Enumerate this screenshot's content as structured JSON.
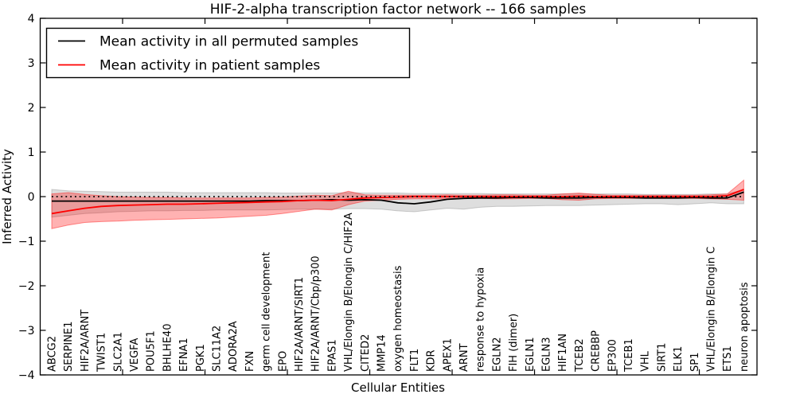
{
  "figure": {
    "background": "#ffffff"
  },
  "chart_data": {
    "type": "line",
    "title": "HIF-2-alpha transcription factor network -- 166 samples",
    "xlabel": "Cellular Entities",
    "ylabel": "Inferred Activity",
    "ylim": [
      -4,
      4
    ],
    "yticks": [
      4,
      3,
      2,
      1,
      0,
      -1,
      -2,
      -3,
      -4
    ],
    "xlim": [
      0,
      43.5
    ],
    "x_major_ticks": [
      5,
      10,
      15,
      20,
      25,
      30,
      35,
      40
    ],
    "x_offset": 0.7,
    "grid": false,
    "legend_position": "upper left",
    "reference_line": {
      "y": 0,
      "style": "dotted",
      "color": "#000000"
    },
    "categories": [
      "ABCG2",
      "SERPINE1",
      "HIF2A/ARNT",
      "TWIST1",
      "SLC2A1",
      "VEGFA",
      "POU5F1",
      "BHLHE40",
      "EFNA1",
      "PGK1",
      "SLC11A2",
      "ADORA2A",
      "FXN",
      "germ cell development",
      "EPO",
      "HIF2A/ARNT/SIRT1",
      "HIF2A/ARNT/Cbp/p300",
      "EPAS1",
      "VHL/Elongin B/Elongin C/HIF2A",
      "CITED2",
      "MMP14",
      "oxygen homeostasis",
      "FLT1",
      "KDR",
      "APEX1",
      "ARNT",
      "response to hypoxia",
      "EGLN2",
      "FIH (dimer)",
      "EGLN1",
      "EGLN3",
      "HIF1AN",
      "TCEB2",
      "CREBBP",
      "EP300",
      "TCEB1",
      "VHL",
      "SIRT1",
      "ELK1",
      "SP1",
      "VHL/Elongin B/Elongin C",
      "ETS1",
      "neuron apoptosis"
    ],
    "series": [
      {
        "name": "Mean activity in all permuted samples",
        "color": "#000000",
        "band_color": "#888888",
        "band_opacity": 0.28,
        "values": [
          -0.1,
          -0.1,
          -0.1,
          -0.1,
          -0.1,
          -0.1,
          -0.1,
          -0.1,
          -0.1,
          -0.1,
          -0.1,
          -0.1,
          -0.1,
          -0.09,
          -0.09,
          -0.09,
          -0.08,
          -0.07,
          -0.08,
          -0.07,
          -0.08,
          -0.14,
          -0.16,
          -0.12,
          -0.06,
          -0.04,
          -0.03,
          -0.03,
          -0.02,
          -0.02,
          -0.03,
          -0.03,
          -0.03,
          -0.02,
          -0.02,
          -0.02,
          -0.03,
          -0.03,
          -0.03,
          -0.02,
          -0.03,
          -0.03,
          0.1
        ],
        "band_upper": [
          0.16,
          0.13,
          0.12,
          0.11,
          0.1,
          0.1,
          0.1,
          0.1,
          0.09,
          0.09,
          0.09,
          0.09,
          0.09,
          0.09,
          0.08,
          0.08,
          0.08,
          0.08,
          0.09,
          0.08,
          0.08,
          0.08,
          0.07,
          0.07,
          0.07,
          0.07,
          0.07,
          0.06,
          0.06,
          0.06,
          0.06,
          0.06,
          0.06,
          0.06,
          0.06,
          0.06,
          0.05,
          0.05,
          0.05,
          0.05,
          0.06,
          0.06,
          0.16
        ],
        "band_lower": [
          -0.46,
          -0.42,
          -0.38,
          -0.36,
          -0.34,
          -0.33,
          -0.32,
          -0.32,
          -0.31,
          -0.31,
          -0.3,
          -0.3,
          -0.3,
          -0.3,
          -0.29,
          -0.28,
          -0.28,
          -0.28,
          -0.27,
          -0.27,
          -0.28,
          -0.32,
          -0.34,
          -0.3,
          -0.26,
          -0.28,
          -0.24,
          -0.22,
          -0.22,
          -0.21,
          -0.2,
          -0.2,
          -0.2,
          -0.19,
          -0.18,
          -0.17,
          -0.16,
          -0.16,
          -0.18,
          -0.16,
          -0.14,
          -0.16,
          -0.16
        ]
      },
      {
        "name": "Mean activity in patient samples",
        "color": "#ff0000",
        "band_color": "#ff0000",
        "band_opacity": 0.3,
        "values": [
          -0.38,
          -0.32,
          -0.26,
          -0.22,
          -0.2,
          -0.19,
          -0.18,
          -0.17,
          -0.17,
          -0.16,
          -0.15,
          -0.14,
          -0.13,
          -0.12,
          -0.11,
          -0.09,
          -0.08,
          -0.09,
          -0.06,
          -0.03,
          -0.02,
          -0.01,
          0.0,
          0.0,
          0.0,
          0.0,
          0.0,
          0.0,
          0.0,
          0.0,
          0.0,
          0.0,
          0.01,
          0.0,
          0.0,
          0.0,
          0.0,
          0.0,
          0.0,
          0.0,
          0.0,
          0.02,
          0.16
        ],
        "band_upper": [
          0.06,
          0.09,
          0.05,
          0.02,
          0.0,
          -0.01,
          -0.02,
          -0.02,
          -0.03,
          -0.03,
          -0.03,
          -0.03,
          -0.03,
          -0.02,
          -0.01,
          0.01,
          0.03,
          0.02,
          0.12,
          0.04,
          0.03,
          0.03,
          0.03,
          0.03,
          0.04,
          0.03,
          0.03,
          0.04,
          0.04,
          0.03,
          0.03,
          0.06,
          0.08,
          0.05,
          0.03,
          0.03,
          0.03,
          0.03,
          0.03,
          0.03,
          0.04,
          0.06,
          0.37
        ],
        "band_lower": [
          -0.72,
          -0.64,
          -0.58,
          -0.56,
          -0.55,
          -0.53,
          -0.52,
          -0.51,
          -0.5,
          -0.49,
          -0.48,
          -0.46,
          -0.44,
          -0.42,
          -0.38,
          -0.33,
          -0.28,
          -0.3,
          -0.18,
          -0.1,
          -0.08,
          -0.06,
          -0.05,
          -0.05,
          -0.05,
          -0.04,
          -0.04,
          -0.05,
          -0.05,
          -0.04,
          -0.04,
          -0.07,
          -0.08,
          -0.05,
          -0.04,
          -0.04,
          -0.04,
          -0.04,
          -0.04,
          -0.04,
          -0.05,
          -0.06,
          -0.08
        ]
      }
    ]
  },
  "legend": {
    "entries": [
      {
        "label": "Mean activity in all permuted samples"
      },
      {
        "label": "Mean activity in patient samples"
      }
    ]
  }
}
